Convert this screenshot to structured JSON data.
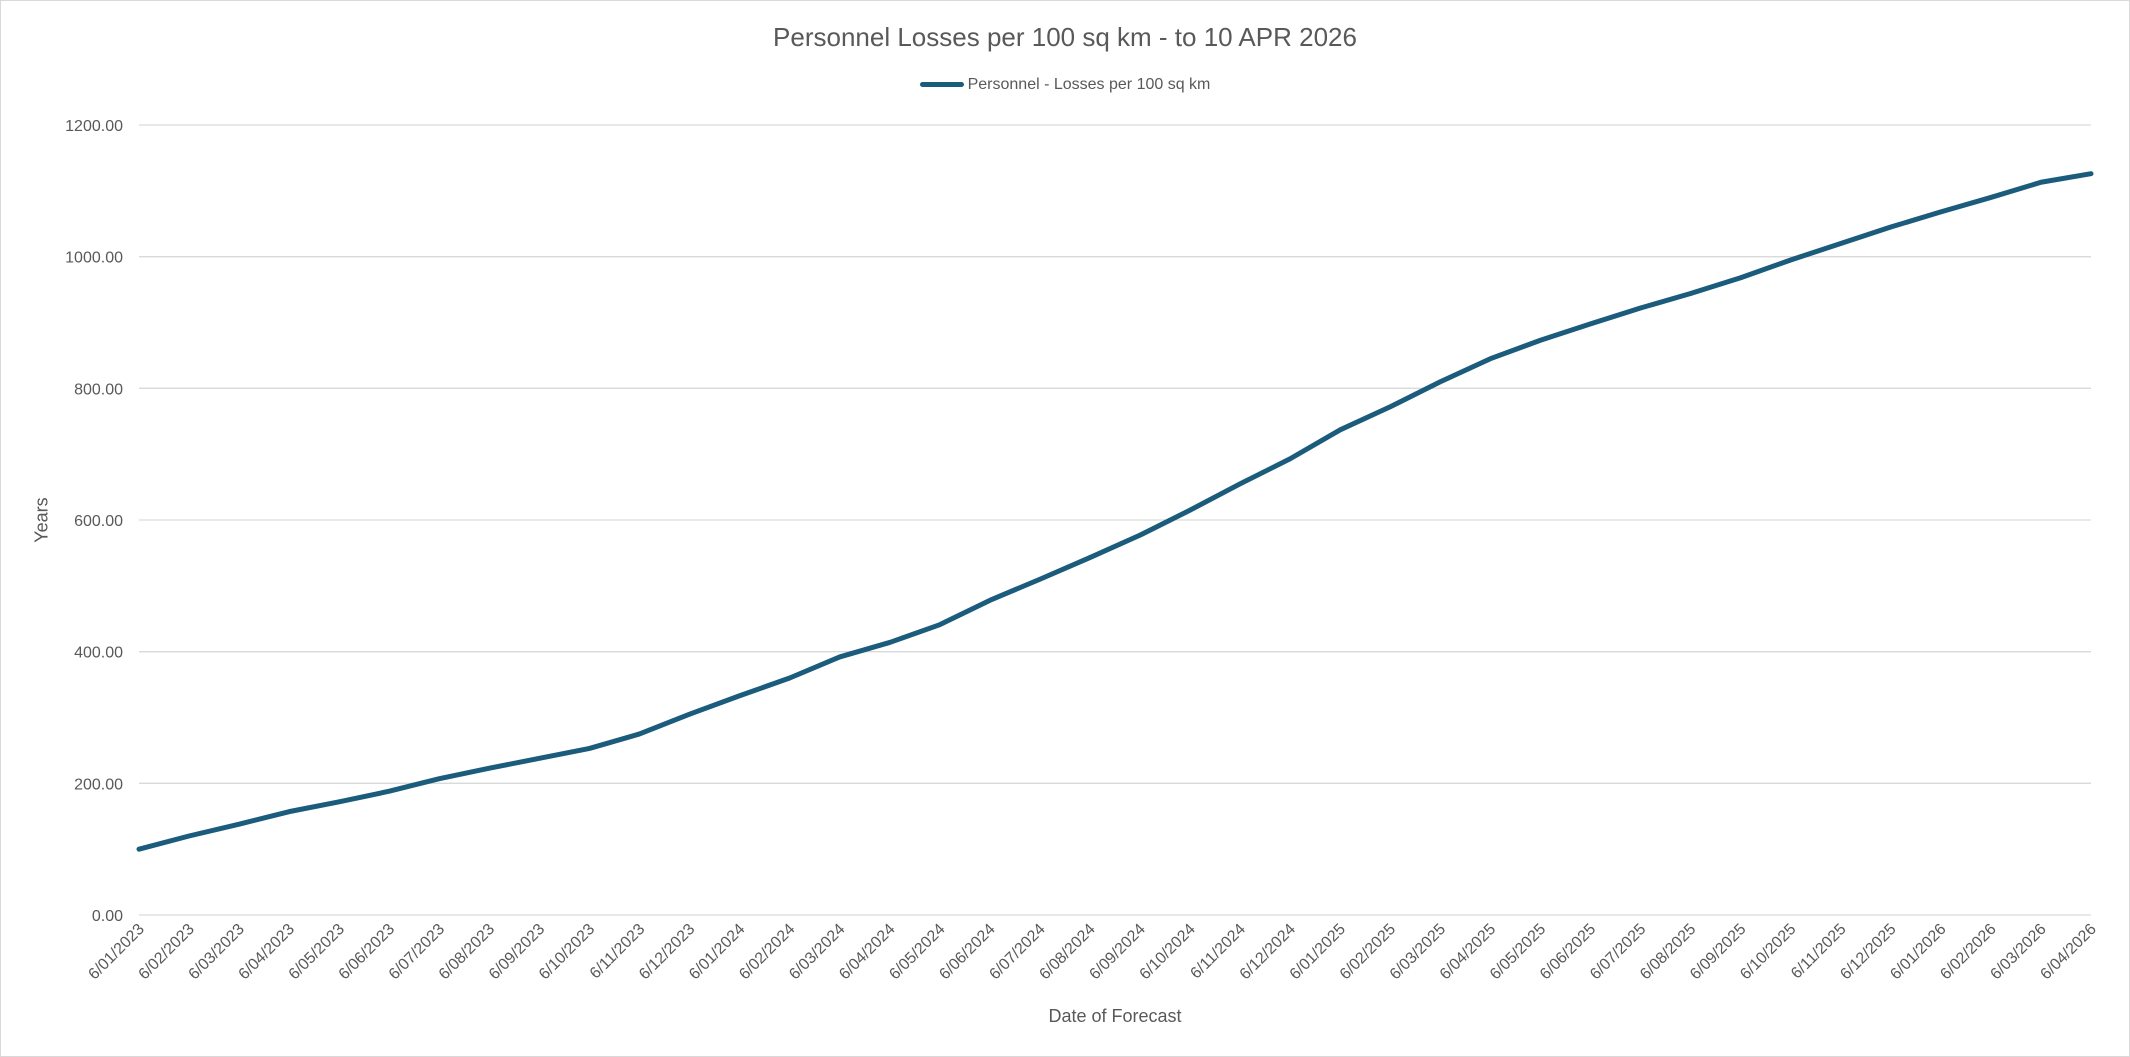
{
  "chart_data": {
    "type": "line",
    "title": "Personnel Losses per 100 sq km - to 10 APR 2026",
    "xlabel": "Date of Forecast",
    "ylabel": "Years",
    "ylim": [
      0,
      1200
    ],
    "yticks": [
      "0.00",
      "200.00",
      "400.00",
      "600.00",
      "800.00",
      "1000.00",
      "1200.00"
    ],
    "grid": true,
    "legend_position": "top",
    "categories": [
      "6/01/2023",
      "6/02/2023",
      "6/03/2023",
      "6/04/2023",
      "6/05/2023",
      "6/06/2023",
      "6/07/2023",
      "6/08/2023",
      "6/09/2023",
      "6/10/2023",
      "6/11/2023",
      "6/12/2023",
      "6/01/2024",
      "6/02/2024",
      "6/03/2024",
      "6/04/2024",
      "6/05/2024",
      "6/06/2024",
      "6/07/2024",
      "6/08/2024",
      "6/09/2024",
      "6/10/2024",
      "6/11/2024",
      "6/12/2024",
      "6/01/2025",
      "6/02/2025",
      "6/03/2025",
      "6/04/2025",
      "6/05/2025",
      "6/06/2025",
      "6/07/2025",
      "6/08/2025",
      "6/09/2025",
      "6/10/2025",
      "6/11/2025",
      "6/12/2025",
      "6/01/2026",
      "6/02/2026",
      "6/03/2026",
      "6/04/2026"
    ],
    "series": [
      {
        "name": "Personnel - Losses per 100 sq km",
        "color": "#1b5c7c",
        "values": [
          100,
          120,
          138,
          157,
          172,
          188,
          207,
          223,
          238,
          253,
          275,
          305,
          333,
          360,
          392,
          414,
          441,
          478,
          510,
          543,
          577,
          615,
          655,
          693,
          737,
          772,
          810,
          845,
          873,
          898,
          922,
          944,
          968,
          995,
          1020,
          1045,
          1068,
          1090,
          1113,
          1126
        ]
      }
    ]
  }
}
